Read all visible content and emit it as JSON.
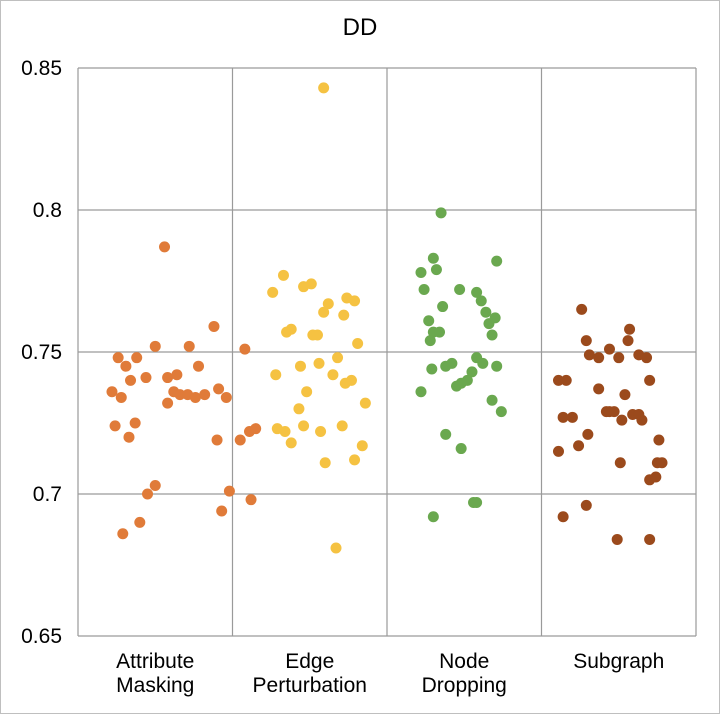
{
  "chart_data": {
    "type": "scatter",
    "title": "DD",
    "xlabel": "",
    "ylabel": "",
    "ylim": [
      0.65,
      0.85
    ],
    "yticks": [
      "0.85",
      "0.8",
      "0.75",
      "0.7",
      "0.65"
    ],
    "ytick_values": [
      0.85,
      0.8,
      0.75,
      0.7,
      0.65
    ],
    "grid": true,
    "legend": "none",
    "categories": [
      [
        "Attribute",
        "Masking"
      ],
      [
        "Edge",
        "Perturbation"
      ],
      [
        "Node",
        "Dropping"
      ],
      [
        "Subgraph"
      ]
    ],
    "series": [
      {
        "color": "#e07b39",
        "points": [
          [
            0.26,
            0.748
          ],
          [
            0.22,
            0.736
          ],
          [
            0.31,
            0.745
          ],
          [
            0.38,
            0.748
          ],
          [
            0.5,
            0.752
          ],
          [
            0.56,
            0.787
          ],
          [
            0.28,
            0.734
          ],
          [
            0.34,
            0.74
          ],
          [
            0.44,
            0.741
          ],
          [
            0.58,
            0.741
          ],
          [
            0.64,
            0.742
          ],
          [
            0.72,
            0.752
          ],
          [
            0.78,
            0.745
          ],
          [
            0.88,
            0.759
          ],
          [
            0.62,
            0.736
          ],
          [
            0.66,
            0.735
          ],
          [
            0.71,
            0.735
          ],
          [
            0.76,
            0.734
          ],
          [
            0.82,
            0.735
          ],
          [
            0.91,
            0.737
          ],
          [
            0.96,
            0.734
          ],
          [
            1.08,
            0.751
          ],
          [
            0.24,
            0.724
          ],
          [
            0.33,
            0.72
          ],
          [
            0.37,
            0.725
          ],
          [
            0.58,
            0.732
          ],
          [
            0.9,
            0.719
          ],
          [
            1.05,
            0.719
          ],
          [
            1.11,
            0.722
          ],
          [
            1.15,
            0.723
          ],
          [
            0.45,
            0.7
          ],
          [
            0.5,
            0.703
          ],
          [
            0.98,
            0.701
          ],
          [
            1.12,
            0.698
          ],
          [
            0.93,
            0.694
          ],
          [
            0.29,
            0.686
          ],
          [
            0.4,
            0.69
          ]
        ]
      },
      {
        "color": "#f5c242",
        "points": [
          [
            1.59,
            0.843
          ],
          [
            1.26,
            0.771
          ],
          [
            1.33,
            0.777
          ],
          [
            1.46,
            0.773
          ],
          [
            1.51,
            0.774
          ],
          [
            1.74,
            0.769
          ],
          [
            1.62,
            0.767
          ],
          [
            1.79,
            0.768
          ],
          [
            1.35,
            0.757
          ],
          [
            1.38,
            0.758
          ],
          [
            1.52,
            0.756
          ],
          [
            1.55,
            0.756
          ],
          [
            1.59,
            0.764
          ],
          [
            1.72,
            0.763
          ],
          [
            1.81,
            0.753
          ],
          [
            1.28,
            0.742
          ],
          [
            1.44,
            0.745
          ],
          [
            1.56,
            0.746
          ],
          [
            1.65,
            0.742
          ],
          [
            1.68,
            0.748
          ],
          [
            1.73,
            0.739
          ],
          [
            1.77,
            0.74
          ],
          [
            1.86,
            0.732
          ],
          [
            1.43,
            0.73
          ],
          [
            1.48,
            0.736
          ],
          [
            1.29,
            0.723
          ],
          [
            1.34,
            0.722
          ],
          [
            1.38,
            0.718
          ],
          [
            1.46,
            0.724
          ],
          [
            1.57,
            0.722
          ],
          [
            1.71,
            0.724
          ],
          [
            1.79,
            0.712
          ],
          [
            1.84,
            0.717
          ],
          [
            1.6,
            0.711
          ],
          [
            1.67,
            0.681
          ]
        ]
      },
      {
        "color": "#6aa84f",
        "points": [
          [
            2.35,
            0.799
          ],
          [
            2.3,
            0.783
          ],
          [
            2.22,
            0.778
          ],
          [
            2.32,
            0.779
          ],
          [
            2.24,
            0.772
          ],
          [
            2.47,
            0.772
          ],
          [
            2.58,
            0.771
          ],
          [
            2.71,
            0.782
          ],
          [
            2.36,
            0.766
          ],
          [
            2.61,
            0.768
          ],
          [
            2.64,
            0.764
          ],
          [
            2.66,
            0.76
          ],
          [
            2.7,
            0.762
          ],
          [
            2.27,
            0.761
          ],
          [
            2.3,
            0.757
          ],
          [
            2.34,
            0.757
          ],
          [
            2.28,
            0.754
          ],
          [
            2.68,
            0.756
          ],
          [
            2.29,
            0.744
          ],
          [
            2.38,
            0.745
          ],
          [
            2.42,
            0.746
          ],
          [
            2.58,
            0.748
          ],
          [
            2.62,
            0.746
          ],
          [
            2.71,
            0.745
          ],
          [
            2.55,
            0.743
          ],
          [
            2.48,
            0.739
          ],
          [
            2.45,
            0.738
          ],
          [
            2.52,
            0.74
          ],
          [
            2.22,
            0.736
          ],
          [
            2.68,
            0.733
          ],
          [
            2.74,
            0.729
          ],
          [
            2.38,
            0.721
          ],
          [
            2.48,
            0.716
          ],
          [
            2.3,
            0.692
          ],
          [
            2.56,
            0.697
          ],
          [
            2.58,
            0.697
          ]
        ]
      },
      {
        "color": "#9b4a1c",
        "points": [
          [
            3.26,
            0.765
          ],
          [
            3.31,
            0.749
          ],
          [
            3.29,
            0.754
          ],
          [
            3.37,
            0.748
          ],
          [
            3.44,
            0.751
          ],
          [
            3.5,
            0.748
          ],
          [
            3.57,
            0.758
          ],
          [
            3.63,
            0.749
          ],
          [
            3.68,
            0.748
          ],
          [
            3.56,
            0.754
          ],
          [
            3.11,
            0.74
          ],
          [
            3.16,
            0.74
          ],
          [
            3.37,
            0.737
          ],
          [
            3.44,
            0.729
          ],
          [
            3.47,
            0.729
          ],
          [
            3.54,
            0.735
          ],
          [
            3.59,
            0.728
          ],
          [
            3.65,
            0.726
          ],
          [
            3.7,
            0.74
          ],
          [
            3.14,
            0.727
          ],
          [
            3.2,
            0.727
          ],
          [
            3.52,
            0.726
          ],
          [
            3.63,
            0.728
          ],
          [
            3.24,
            0.717
          ],
          [
            3.3,
            0.721
          ],
          [
            3.42,
            0.729
          ],
          [
            3.11,
            0.715
          ],
          [
            3.51,
            0.711
          ],
          [
            3.7,
            0.705
          ],
          [
            3.75,
            0.711
          ],
          [
            3.78,
            0.711
          ],
          [
            3.76,
            0.719
          ],
          [
            3.74,
            0.706
          ],
          [
            3.14,
            0.692
          ],
          [
            3.29,
            0.696
          ],
          [
            3.49,
            0.684
          ],
          [
            3.7,
            0.684
          ]
        ]
      }
    ]
  }
}
